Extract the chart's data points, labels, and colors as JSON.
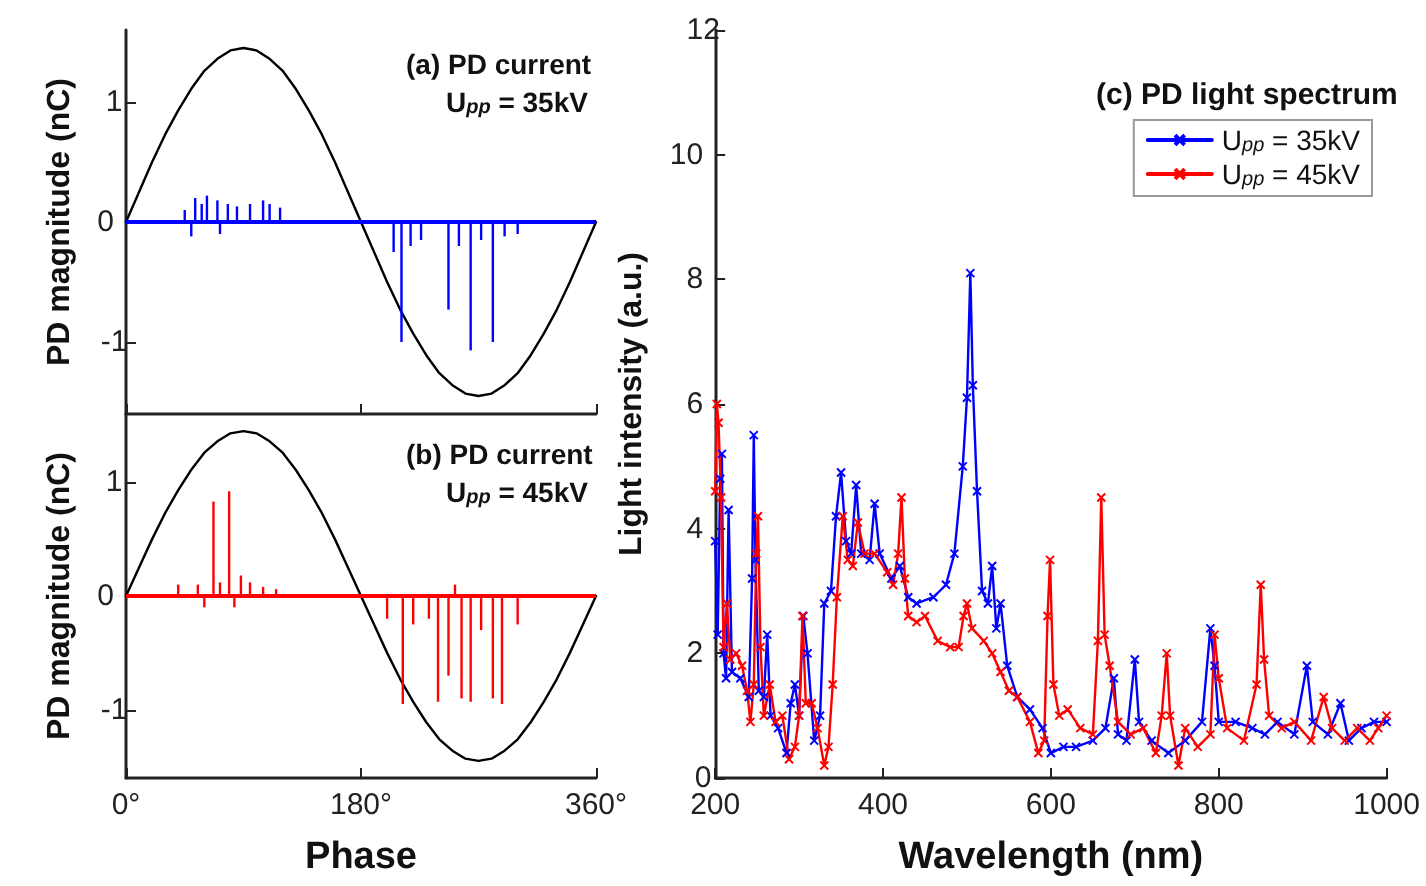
{
  "chart_data": [
    {
      "type": "line",
      "title": "(a) PD current",
      "subtitle": "U$_{pp}$ = 35kV",
      "ylabel": "PD magnitude (nC)",
      "xlim": [
        0,
        360
      ],
      "xticks": [
        {
          "value": 0,
          "label": null
        },
        {
          "value": 180,
          "label": null
        },
        {
          "value": 360,
          "label": null
        }
      ],
      "ylim": [
        -1.6,
        1.6
      ],
      "yticks": [
        -1,
        0,
        1
      ],
      "tick_labels": "y",
      "grid": false,
      "legend": false,
      "marker": "none",
      "line_style": "solid",
      "ref_lines": [
        {
          "axis": "y",
          "value": 0,
          "color": "#0000ff"
        }
      ],
      "series": [
        {
          "color": "#000000",
          "x": [
            0,
            10,
            20,
            30,
            40,
            50,
            60,
            70,
            80,
            90,
            100,
            110,
            120,
            130,
            140,
            150,
            160,
            170,
            180,
            190,
            200,
            210,
            220,
            230,
            240,
            250,
            260,
            270,
            280,
            290,
            300,
            310,
            320,
            330,
            340,
            350,
            360
          ],
          "values": [
            0,
            0.25,
            0.5,
            0.73,
            0.93,
            1.11,
            1.26,
            1.36,
            1.43,
            1.45,
            1.43,
            1.36,
            1.26,
            1.11,
            0.93,
            0.73,
            0.5,
            0.25,
            0,
            -0.25,
            -0.5,
            -0.73,
            -0.93,
            -1.11,
            -1.26,
            -1.36,
            -1.43,
            -1.45,
            -1.43,
            -1.36,
            -1.26,
            -1.11,
            -0.93,
            -0.73,
            -0.5,
            -0.25,
            0
          ]
        },
        {
          "type": "bar",
          "color": "#0000ff",
          "x": [
            45,
            50,
            53,
            58,
            62,
            70,
            72,
            78,
            85,
            95,
            105,
            110,
            118,
            205,
            211,
            218,
            226,
            247,
            255,
            264,
            272,
            281,
            290,
            300
          ],
          "values": [
            0.1,
            -0.12,
            0.2,
            0.15,
            0.22,
            0.18,
            -0.1,
            0.15,
            0.13,
            0.15,
            0.18,
            0.15,
            0.12,
            -0.25,
            -1,
            -0.2,
            -0.15,
            -0.73,
            -0.2,
            -1.07,
            -0.15,
            -1,
            -0.12,
            -0.1
          ]
        }
      ]
    },
    {
      "type": "line",
      "title": "(b) PD current",
      "subtitle": "U$_{pp}$ = 45kV",
      "xlabel": "Phase",
      "ylabel": "PD magnitude (nC)",
      "xlim": [
        0,
        360
      ],
      "xticks": [
        {
          "value": 0,
          "label": "0°"
        },
        {
          "value": 180,
          "label": "180°"
        },
        {
          "value": 360,
          "label": "360°"
        }
      ],
      "ylim": [
        -1.6,
        1.6
      ],
      "yticks": [
        -1,
        0,
        1
      ],
      "grid": false,
      "legend": false,
      "marker": "none",
      "line_style": "solid",
      "ref_lines": [
        {
          "axis": "y",
          "value": 0,
          "color": "#ff0000"
        }
      ],
      "series": [
        {
          "color": "#000000",
          "x": [
            0,
            10,
            20,
            30,
            40,
            50,
            60,
            70,
            80,
            90,
            100,
            110,
            120,
            130,
            140,
            150,
            160,
            170,
            180,
            190,
            200,
            210,
            220,
            230,
            240,
            250,
            260,
            270,
            280,
            290,
            300,
            310,
            320,
            330,
            340,
            350,
            360
          ],
          "values": [
            0,
            0.25,
            0.5,
            0.73,
            0.93,
            1.11,
            1.26,
            1.36,
            1.43,
            1.45,
            1.43,
            1.36,
            1.26,
            1.11,
            0.93,
            0.73,
            0.5,
            0.25,
            0,
            -0.25,
            -0.5,
            -0.73,
            -0.93,
            -1.11,
            -1.26,
            -1.36,
            -1.43,
            -1.45,
            -1.43,
            -1.36,
            -1.26,
            -1.11,
            -0.93,
            -0.73,
            -0.5,
            -0.25,
            0
          ]
        },
        {
          "type": "bar",
          "color": "#ff0000",
          "x": [
            40,
            55,
            60,
            67,
            72,
            79,
            83,
            88,
            95,
            105,
            115,
            200,
            212,
            220,
            232,
            239,
            247,
            252,
            257,
            264,
            272,
            281,
            288,
            300
          ],
          "values": [
            0.1,
            0.1,
            -0.1,
            0.83,
            0.12,
            0.92,
            -0.1,
            0.18,
            0.12,
            0.08,
            0.06,
            -0.2,
            -0.95,
            -0.25,
            -0.2,
            -0.93,
            -0.7,
            0.1,
            -0.9,
            -0.93,
            -0.3,
            -0.9,
            -0.95,
            -0.25
          ]
        }
      ]
    },
    {
      "type": "line",
      "title": "(c) PD light spectrum",
      "xlabel": "Wavelength (nm)",
      "ylabel": "Light intensity (a.u.)",
      "xlim": [
        200,
        1000
      ],
      "xticks": [
        200,
        400,
        600,
        800,
        1000
      ],
      "ylim": [
        0,
        12
      ],
      "yticks": [
        0,
        2,
        4,
        6,
        8,
        10,
        12
      ],
      "grid": false,
      "legend": "top right",
      "marker": "cross",
      "line_style": "solid",
      "series": [
        {
          "name": "U$_{pp}$ = 35kV",
          "color": "#0000ff",
          "x": [
            200,
            203,
            206,
            208,
            210,
            213,
            216,
            220,
            230,
            240,
            244,
            246,
            248,
            252,
            258,
            262,
            266,
            275,
            285,
            290,
            295,
            300,
            305,
            310,
            318,
            325,
            330,
            338,
            344,
            350,
            356,
            362,
            368,
            374,
            384,
            390,
            396,
            410,
            420,
            430,
            440,
            460,
            475,
            485,
            495,
            500,
            504,
            507,
            512,
            518,
            525,
            530,
            535,
            540,
            548,
            560,
            575,
            590,
            600,
            615,
            630,
            650,
            665,
            675,
            680,
            690,
            700,
            705,
            720,
            740,
            760,
            780,
            790,
            795,
            800,
            820,
            840,
            855,
            870,
            890,
            905,
            912,
            930,
            945,
            955,
            970,
            985,
            1000
          ],
          "values": [
            3.8,
            2.3,
            4.8,
            5.2,
            2,
            1.6,
            4.3,
            1.7,
            1.6,
            1.3,
            3.2,
            5.5,
            3.5,
            1.4,
            1.3,
            2.3,
            1,
            0.8,
            0.4,
            1.2,
            1.5,
            1,
            2.6,
            2,
            0.6,
            1,
            2.8,
            3,
            4.2,
            4.9,
            3.8,
            3.6,
            4.7,
            3.6,
            3.5,
            4.4,
            3.6,
            3.2,
            3.4,
            2.9,
            2.8,
            2.9,
            3.1,
            3.6,
            5,
            6.1,
            8.1,
            6.3,
            4.6,
            3,
            2.8,
            3.4,
            2.4,
            2.8,
            1.8,
            1.3,
            1.1,
            0.8,
            0.4,
            0.5,
            0.5,
            0.6,
            0.8,
            1.6,
            0.7,
            0.6,
            1.9,
            0.9,
            0.6,
            0.4,
            0.6,
            0.9,
            2.4,
            1.8,
            0.9,
            0.9,
            0.8,
            0.7,
            0.9,
            0.7,
            1.8,
            0.9,
            0.7,
            1.2,
            0.6,
            0.8,
            0.9,
            0.9
          ]
        },
        {
          "name": "U$_{pp}$ = 45kV",
          "color": "#ff0000",
          "x": [
            200,
            202,
            204,
            207,
            210,
            214,
            218,
            225,
            232,
            238,
            242,
            246,
            249,
            251,
            254,
            258,
            265,
            272,
            280,
            288,
            295,
            300,
            304,
            308,
            315,
            322,
            330,
            335,
            340,
            345,
            352,
            358,
            364,
            370,
            378,
            390,
            405,
            412,
            418,
            422,
            426,
            430,
            440,
            450,
            465,
            480,
            490,
            496,
            500,
            506,
            520,
            530,
            540,
            550,
            560,
            575,
            585,
            592,
            596,
            599,
            603,
            610,
            620,
            635,
            650,
            656,
            660,
            664,
            670,
            680,
            695,
            710,
            725,
            732,
            738,
            742,
            752,
            760,
            775,
            790,
            795,
            800,
            810,
            830,
            845,
            850,
            854,
            860,
            875,
            890,
            910,
            925,
            935,
            950,
            965,
            980,
            990,
            1000
          ],
          "values": [
            4.6,
            6,
            5.7,
            4.5,
            2.1,
            2.8,
            1.9,
            2,
            1.8,
            1.4,
            0.9,
            1.5,
            3.6,
            4.2,
            2.1,
            1,
            1.5,
            0.9,
            1,
            0.3,
            0.5,
            1,
            2.6,
            1.2,
            1.2,
            0.8,
            0.2,
            0.5,
            1.5,
            2.9,
            4.2,
            3.5,
            3.4,
            4.1,
            3.6,
            3.6,
            3.3,
            3.1,
            3.6,
            4.5,
            3.2,
            2.6,
            2.5,
            2.6,
            2.2,
            2.1,
            2.1,
            2.6,
            2.8,
            2.4,
            2.2,
            2,
            1.7,
            1.4,
            1.3,
            0.9,
            0.4,
            0.6,
            2.6,
            3.5,
            1.5,
            1,
            1.1,
            0.8,
            0.7,
            2.2,
            4.5,
            2.3,
            1.8,
            0.9,
            0.7,
            0.8,
            0.4,
            1,
            2,
            1,
            0.2,
            0.8,
            0.5,
            0.7,
            2.3,
            1.6,
            0.8,
            0.6,
            1.5,
            3.1,
            1.9,
            1,
            0.8,
            0.9,
            0.6,
            1.3,
            0.8,
            0.6,
            0.8,
            0.6,
            0.8,
            1
          ]
        }
      ]
    }
  ]
}
